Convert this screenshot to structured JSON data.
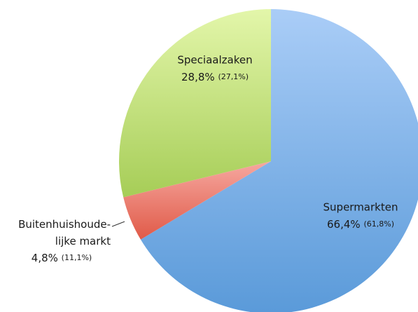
{
  "chart_data": {
    "type": "pie",
    "categories": [
      "Supermarkten",
      "Buitenhuishoude-\nlijke markt",
      "Speciaalzaken"
    ],
    "values": [
      66.4,
      4.8,
      28.8
    ],
    "value_labels": [
      "66,4%",
      "4,8%",
      "28,8%"
    ],
    "comparison_values": [
      61.8,
      11.1,
      27.1
    ],
    "comparison_labels": [
      "(61,8%)",
      "(11,1%)",
      "(27,1%)"
    ],
    "colors": [
      [
        "#aacdf7",
        "#5a9ad9"
      ],
      [
        "#f6a8a0",
        "#e05a48"
      ],
      [
        "#e3f6aa",
        "#a6cd57"
      ]
    ]
  }
}
